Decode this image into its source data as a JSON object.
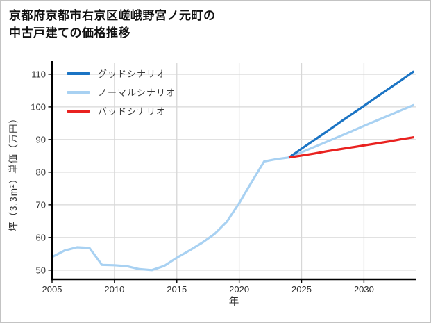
{
  "title": {
    "line1": "京都府京都市右京区嵯峨野宮ノ元町の",
    "line2": "中古戸建ての価格推移"
  },
  "chart_data": {
    "type": "line",
    "title": "京都府京都市右京区嵯峨野宮ノ元町の中古戸建ての価格推移",
    "xlabel": "年",
    "ylabel": "坪（3.3m²）単価（万円）",
    "xlim": [
      2005,
      2034.15
    ],
    "ylim": [
      47.2,
      113.6
    ],
    "xticks": [
      2005,
      2010,
      2015,
      2020,
      2025,
      2030
    ],
    "yticks": [
      50,
      60,
      70,
      80,
      90,
      100,
      110
    ],
    "grid": true,
    "grid_color": "#d7d7d7",
    "legend_position": "upper-left",
    "series": [
      {
        "name": "グッドシナリオ",
        "color": "#1b74c4",
        "zorder": 2,
        "x": [
          2024,
          2025,
          2026,
          2027,
          2028,
          2029,
          2030,
          2031,
          2032,
          2033,
          2034
        ],
        "values": [
          84.5,
          87.2,
          89.8,
          92.4,
          95.1,
          97.7,
          100.3,
          103.0,
          105.6,
          108.2,
          110.9
        ]
      },
      {
        "name": "ノーマルシナリオ",
        "color": "#a8d1f2",
        "zorder": 1,
        "x": [
          2005,
          2006,
          2007,
          2008,
          2009,
          2010,
          2011,
          2012,
          2013,
          2014,
          2015,
          2016,
          2017,
          2018,
          2019,
          2020,
          2021,
          2022,
          2023,
          2024,
          2025,
          2026,
          2027,
          2028,
          2029,
          2030,
          2031,
          2032,
          2033,
          2034
        ],
        "values": [
          54.0,
          56.0,
          57.0,
          56.8,
          51.6,
          51.5,
          51.2,
          50.3,
          50.0,
          51.3,
          53.8,
          56.0,
          58.3,
          61.0,
          64.8,
          70.5,
          77.0,
          83.3,
          84.0,
          84.5,
          86.1,
          87.7,
          89.3,
          90.9,
          92.5,
          94.2,
          95.8,
          97.4,
          99.0,
          100.6
        ]
      },
      {
        "name": "バッドシナリオ",
        "color": "#e92220",
        "zorder": 3,
        "x": [
          2024,
          2025,
          2026,
          2027,
          2028,
          2029,
          2030,
          2031,
          2032,
          2033,
          2034
        ],
        "values": [
          84.5,
          85.1,
          85.7,
          86.4,
          87.0,
          87.6,
          88.2,
          88.8,
          89.4,
          90.1,
          90.7
        ]
      }
    ]
  }
}
